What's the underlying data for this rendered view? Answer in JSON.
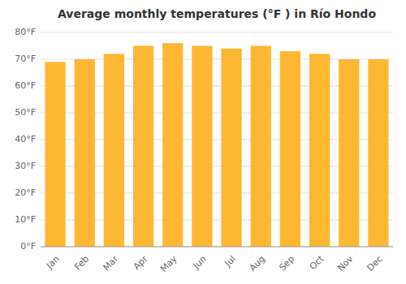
{
  "chart_data": {
    "type": "bar",
    "title": "Average monthly temperatures (°F ) in Río Hondo",
    "categories": [
      "Jan",
      "Feb",
      "Mar",
      "Apr",
      "May",
      "Jun",
      "Jul",
      "Aug",
      "Sep",
      "Oct",
      "Nov",
      "Dec"
    ],
    "values": [
      69,
      70,
      72,
      75,
      76,
      75,
      74,
      75,
      73,
      72,
      70,
      70
    ],
    "color": "#FFB733",
    "ylim": [
      0,
      80
    ],
    "yticks": [
      {
        "value": 0,
        "label": "0°F"
      },
      {
        "value": 10,
        "label": "10°F"
      },
      {
        "value": 20,
        "label": "20°F"
      },
      {
        "value": 30,
        "label": "30°F"
      },
      {
        "value": 40,
        "label": "40°F"
      },
      {
        "value": 50,
        "label": "50°F"
      },
      {
        "value": 60,
        "label": "60°F"
      },
      {
        "value": 70,
        "label": "70°F"
      },
      {
        "value": 80,
        "label": "80°F"
      }
    ],
    "grid": true
  }
}
